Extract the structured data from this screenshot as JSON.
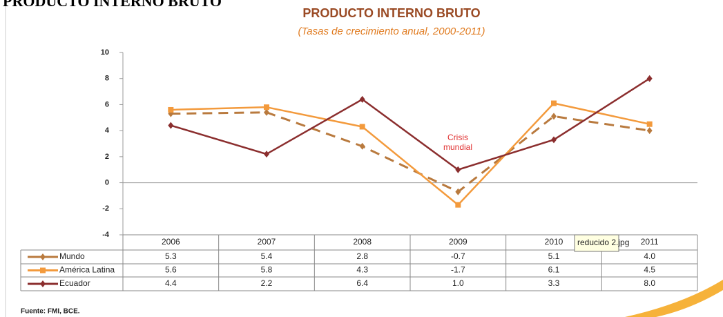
{
  "header": "PRODUCTO INTERNO BRUTO",
  "chart_data": {
    "type": "line",
    "title": "PRODUCTO INTERNO BRUTO",
    "subtitle": "(Tasas de crecimiento anual, 2000-2011)",
    "categories": [
      "2006",
      "2007",
      "2008",
      "2009",
      "2010",
      "2011"
    ],
    "series": [
      {
        "name": "Mundo",
        "color": "#b97a3e",
        "dashed": true,
        "marker": "diamond",
        "values": [
          5.3,
          5.4,
          2.8,
          -0.7,
          5.1,
          4.0
        ],
        "value_labels": [
          "5.3",
          "5.4",
          "2.8",
          "-0.7",
          "5.1",
          "4.0"
        ]
      },
      {
        "name": "América Latina",
        "color": "#f39a3c",
        "dashed": false,
        "marker": "square",
        "values": [
          5.6,
          5.8,
          4.3,
          -1.7,
          6.1,
          4.5
        ],
        "value_labels": [
          "5.6",
          "5.8",
          "4.3",
          "-1.7",
          "6.1",
          "4.5"
        ]
      },
      {
        "name": "Ecuador",
        "color": "#8b2e2e",
        "dashed": false,
        "marker": "diamond",
        "values": [
          4.4,
          2.2,
          6.4,
          1.0,
          3.3,
          8.0
        ],
        "value_labels": [
          "4.4",
          "2.2",
          "6.4",
          "1.0",
          "3.3",
          "8.0"
        ]
      }
    ],
    "ylim": [
      -4,
      10
    ],
    "yticks": [
      -4,
      -2,
      0,
      2,
      4,
      6,
      8,
      10
    ],
    "annotation": [
      "Crisis",
      "mundial"
    ],
    "source": "Fuente: FMI, BCE."
  },
  "tooltip": "reducido 2.jpg"
}
